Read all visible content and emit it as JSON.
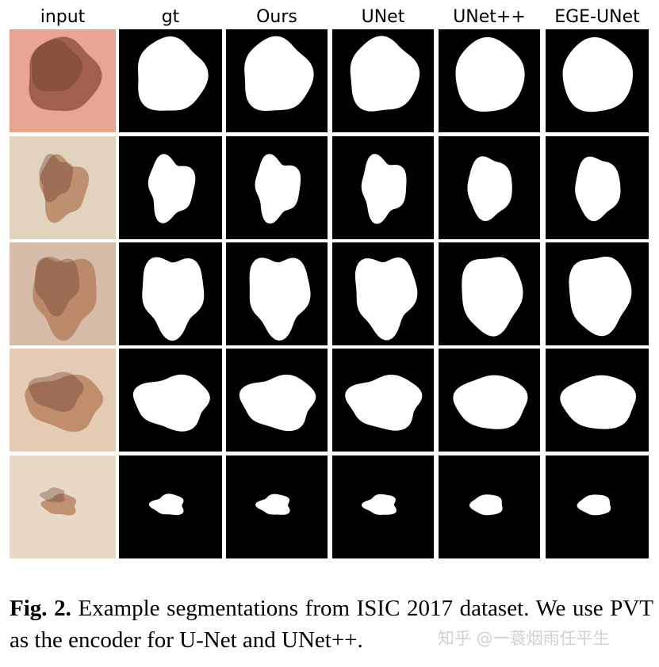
{
  "figure": {
    "columns": [
      "input",
      "gt",
      "Ours",
      "UNet",
      "UNet++",
      "EGE-UNet"
    ],
    "caption": {
      "label": "Fig. 2.",
      "text": "Example segmentations from ISIC 2017 dataset. We use PVT as the encoder for U-Net and UNet++."
    },
    "watermark": "知乎 @一蓑烟雨任平生"
  }
}
